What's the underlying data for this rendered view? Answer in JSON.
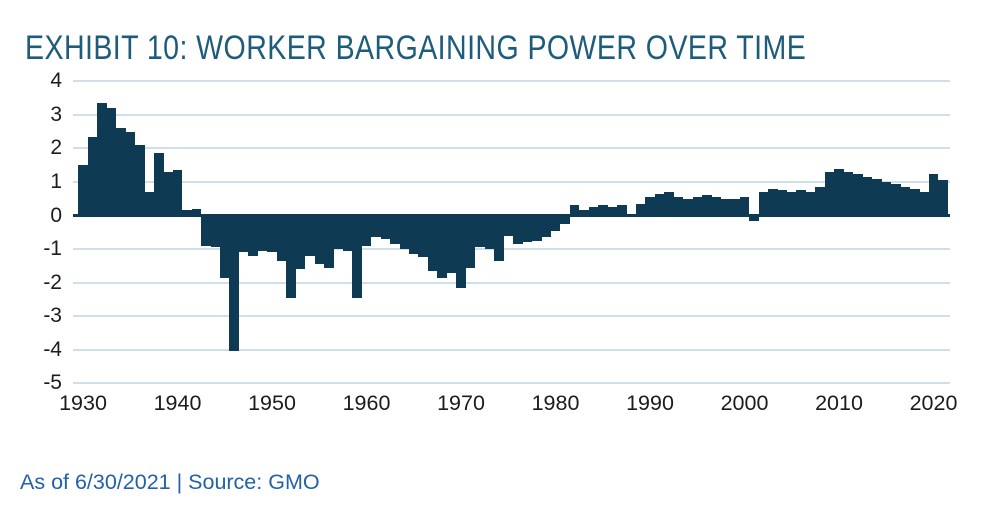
{
  "title": "EXHIBIT 10: WORKER BARGAINING POWER OVER TIME",
  "footer": "As of 6/30/2021 | Source: GMO",
  "colors": {
    "bar": "#0E3A54",
    "zero_line": "#0E3A54",
    "grid": "#CFE0EB",
    "title": "#1E5C7C",
    "footer": "#2262A8",
    "axis_label": "#1C1C1C"
  },
  "chart_data": {
    "type": "bar",
    "title": "EXHIBIT 10: WORKER BARGAINING POWER OVER TIME",
    "source_note": "As of 6/30/2021 | Source: GMO",
    "xlabel": "",
    "ylabel": "",
    "ylim": [
      -5,
      4
    ],
    "grid": "horizontal",
    "legend": "none",
    "y_ticks": [
      4,
      3,
      2,
      1,
      0,
      -1,
      -2,
      -3,
      -4,
      -5
    ],
    "x_ticks": [
      1930,
      1940,
      1950,
      1960,
      1970,
      1980,
      1990,
      2000,
      2010,
      2020
    ],
    "x": [
      1930,
      1931,
      1932,
      1933,
      1934,
      1935,
      1936,
      1937,
      1938,
      1939,
      1940,
      1941,
      1942,
      1943,
      1944,
      1945,
      1946,
      1947,
      1948,
      1949,
      1950,
      1951,
      1952,
      1953,
      1954,
      1955,
      1956,
      1957,
      1958,
      1959,
      1960,
      1961,
      1962,
      1963,
      1964,
      1965,
      1966,
      1967,
      1968,
      1969,
      1970,
      1971,
      1972,
      1973,
      1974,
      1975,
      1976,
      1977,
      1978,
      1979,
      1980,
      1981,
      1982,
      1983,
      1984,
      1985,
      1986,
      1987,
      1988,
      1989,
      1990,
      1991,
      1992,
      1993,
      1994,
      1995,
      1996,
      1997,
      1998,
      1999,
      2000,
      2001,
      2002,
      2003,
      2004,
      2005,
      2006,
      2007,
      2008,
      2009,
      2010,
      2011,
      2012,
      2013,
      2014,
      2015,
      2016,
      2017,
      2018,
      2019,
      2020,
      2021
    ],
    "values": [
      1.5,
      2.35,
      3.35,
      3.2,
      2.6,
      2.5,
      2.1,
      0.7,
      1.85,
      1.3,
      1.35,
      0.15,
      0.2,
      -0.9,
      -0.95,
      -1.85,
      -4.05,
      -1.1,
      -1.2,
      -1.05,
      -1.1,
      -1.35,
      -2.45,
      -1.6,
      -1.2,
      -1.45,
      -1.55,
      -1.0,
      -1.05,
      -2.45,
      -0.9,
      -0.65,
      -0.7,
      -0.85,
      -1.0,
      -1.15,
      -1.25,
      -1.65,
      -1.85,
      -1.7,
      -2.15,
      -1.55,
      -0.95,
      -1.0,
      -1.35,
      -0.6,
      -0.85,
      -0.8,
      -0.75,
      -0.65,
      -0.45,
      -0.25,
      0.3,
      0.15,
      0.25,
      0.3,
      0.25,
      0.3,
      0.05,
      0.35,
      0.55,
      0.65,
      0.7,
      0.55,
      0.5,
      0.55,
      0.6,
      0.55,
      0.5,
      0.5,
      0.55,
      -0.15,
      0.7,
      0.8,
      0.75,
      0.7,
      0.75,
      0.7,
      0.85,
      1.3,
      1.4,
      1.3,
      1.25,
      1.15,
      1.1,
      1.0,
      0.95,
      0.85,
      0.8,
      0.7,
      1.25,
      1.05
    ]
  }
}
